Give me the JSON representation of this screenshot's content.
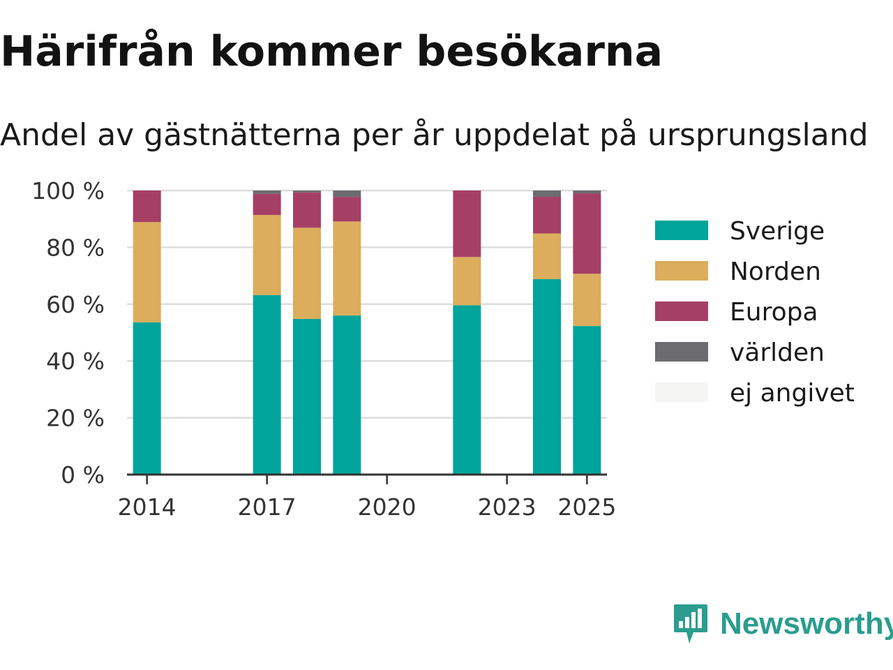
{
  "header": {
    "title": "Härifrån kommer besökarna",
    "subtitle": "Andel av gästnätterna per år uppdelat på ursprungsland"
  },
  "brand": {
    "name": "Newsworthy",
    "color": "#2a9d8f",
    "icon": "newsworthy-logo-icon"
  },
  "chart_data": {
    "type": "bar",
    "stacked": true,
    "x_axis": {
      "type": "year",
      "range": [
        2013.5,
        2025.5
      ],
      "ticks": [
        "2014",
        "2017",
        "2020",
        "2023",
        "2025"
      ]
    },
    "y_axis": {
      "range": [
        0,
        100
      ],
      "ticks": [
        "0 %",
        "20 %",
        "40 %",
        "60 %",
        "80 %",
        "100 %"
      ],
      "unit": "%"
    },
    "grid": true,
    "legend_position": "right",
    "x": [
      2014,
      2017,
      2018,
      2019,
      2022,
      2024,
      2025
    ],
    "series": [
      {
        "name": "Sverige",
        "color": "#00a49a",
        "values": [
          53.6,
          63.2,
          54.8,
          56.0,
          59.6,
          68.8,
          52.3
        ]
      },
      {
        "name": "Norden",
        "color": "#dbad5c",
        "values": [
          35.3,
          28.2,
          32.1,
          33.1,
          17.0,
          16.1,
          18.4
        ]
      },
      {
        "name": "Europa",
        "color": "#a63f66",
        "values": [
          11.1,
          7.4,
          12.4,
          8.6,
          23.4,
          12.9,
          28.3
        ]
      },
      {
        "name": "världen",
        "color": "#6c6b70",
        "values": [
          0,
          1.2,
          0.7,
          2.3,
          0,
          2.2,
          1.0
        ]
      },
      {
        "name": "ej angivet",
        "color": "#f5f5f4",
        "values": [
          0,
          0,
          0,
          0,
          0,
          0,
          0
        ]
      }
    ]
  }
}
